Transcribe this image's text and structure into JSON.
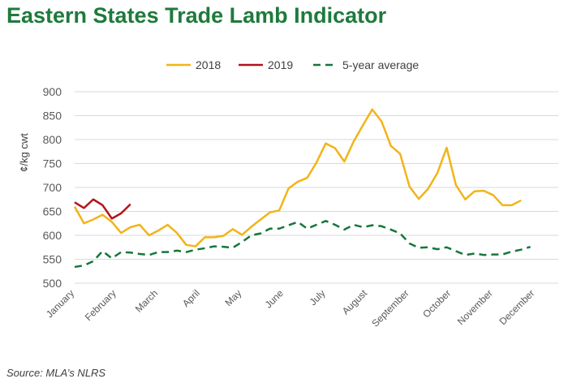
{
  "title": "Eastern States Trade Lamb Indicator",
  "source": "Source: MLA’s NLRS",
  "chart_data": {
    "type": "line",
    "title": "Eastern States Trade Lamb Indicator",
    "ylabel": "¢/kg cwt",
    "xlabel": "",
    "ylim": [
      500,
      900
    ],
    "yticks": [
      500,
      550,
      600,
      650,
      700,
      750,
      800,
      850,
      900
    ],
    "grid": true,
    "legend_position": "top",
    "x_count": 53,
    "month_labels": [
      {
        "label": "January",
        "x": 0
      },
      {
        "label": "February",
        "x": 4.5
      },
      {
        "label": "March",
        "x": 9
      },
      {
        "label": "April",
        "x": 13.5
      },
      {
        "label": "May",
        "x": 18
      },
      {
        "label": "June",
        "x": 22.5
      },
      {
        "label": "July",
        "x": 27
      },
      {
        "label": "August",
        "x": 31.5
      },
      {
        "label": "September",
        "x": 36
      },
      {
        "label": "October",
        "x": 40.5
      },
      {
        "label": "November",
        "x": 45
      },
      {
        "label": "December",
        "x": 49.5
      }
    ],
    "series": [
      {
        "name": "2018",
        "color": "#f2b418",
        "dash": "solid",
        "values": [
          660,
          625,
          633,
          643,
          628,
          605,
          617,
          622,
          600,
          610,
          622,
          605,
          580,
          577,
          596,
          596,
          599,
          613,
          601,
          618,
          633,
          648,
          652,
          698,
          712,
          720,
          752,
          792,
          782,
          754,
          796,
          830,
          863,
          838,
          787,
          770,
          702,
          676,
          697,
          730,
          783,
          705,
          675,
          692,
          693,
          684,
          663,
          663,
          673
        ]
      },
      {
        "name": "2019",
        "color": "#b2141c",
        "dash": "solid",
        "values": [
          669,
          657,
          675,
          663,
          635,
          646,
          665
        ]
      },
      {
        "name": "5-year average",
        "color": "#17763a",
        "dash": "dashed",
        "values": [
          534,
          537,
          546,
          567,
          552,
          565,
          564,
          561,
          559,
          565,
          565,
          568,
          565,
          570,
          573,
          577,
          576,
          574,
          586,
          600,
          604,
          614,
          614,
          621,
          628,
          614,
          622,
          630,
          622,
          612,
          622,
          617,
          621,
          619,
          612,
          604,
          583,
          574,
          575,
          571,
          575,
          567,
          559,
          562,
          559,
          560,
          560,
          566,
          570,
          576
        ]
      }
    ]
  }
}
